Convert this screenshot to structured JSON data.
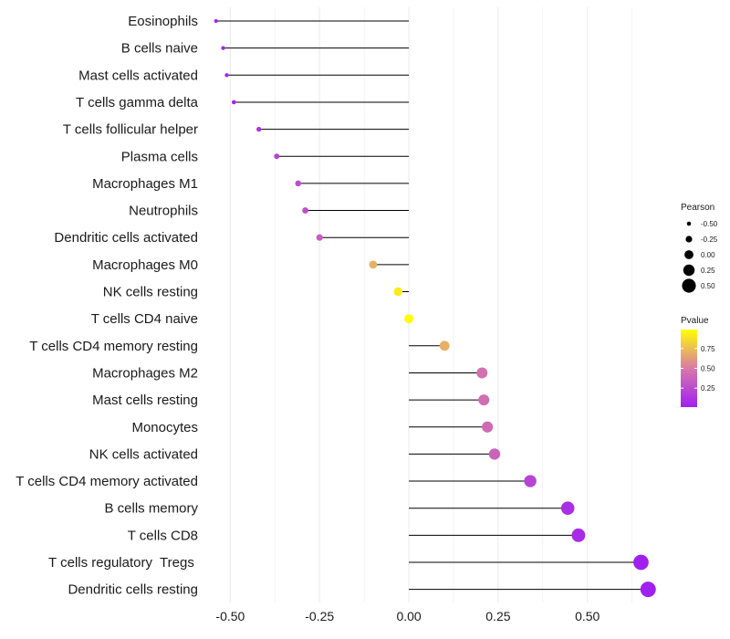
{
  "chart_data": {
    "type": "lollipop",
    "title": "",
    "xlabel": "",
    "ylabel": "",
    "xlim": [
      -0.57,
      0.7
    ],
    "x_ticks": [
      -0.5,
      -0.25,
      0.0,
      0.25,
      0.5
    ],
    "x_tick_labels": [
      "-0.50",
      "-0.25",
      "0.00",
      "0.25",
      "0.50"
    ],
    "grid": true,
    "series": [
      {
        "name": "Eosinophils",
        "pearson": -0.54,
        "pvalue": 0.02
      },
      {
        "name": "B cells naive",
        "pearson": -0.52,
        "pvalue": 0.03
      },
      {
        "name": "Mast cells activated",
        "pearson": -0.51,
        "pvalue": 0.04
      },
      {
        "name": "T cells gamma delta",
        "pearson": -0.49,
        "pvalue": 0.05
      },
      {
        "name": "T cells follicular helper",
        "pearson": -0.42,
        "pvalue": 0.12
      },
      {
        "name": "Plasma cells",
        "pearson": -0.37,
        "pvalue": 0.2
      },
      {
        "name": "Macrophages M1",
        "pearson": -0.31,
        "pvalue": 0.26
      },
      {
        "name": "Neutrophils",
        "pearson": -0.29,
        "pvalue": 0.27
      },
      {
        "name": "Dendritic cells activated",
        "pearson": -0.25,
        "pvalue": 0.35
      },
      {
        "name": "Macrophages M0",
        "pearson": -0.1,
        "pvalue": 0.7
      },
      {
        "name": "NK cells resting",
        "pearson": -0.03,
        "pvalue": 0.92
      },
      {
        "name": "T cells CD4 naive",
        "pearson": 0.0,
        "pvalue": 0.99
      },
      {
        "name": "T cells CD4 memory resting",
        "pearson": 0.1,
        "pvalue": 0.7
      },
      {
        "name": "Macrophages M2",
        "pearson": 0.205,
        "pvalue": 0.45
      },
      {
        "name": "Mast cells resting",
        "pearson": 0.21,
        "pvalue": 0.44
      },
      {
        "name": "Monocytes",
        "pearson": 0.22,
        "pvalue": 0.42
      },
      {
        "name": "NK cells activated",
        "pearson": 0.24,
        "pvalue": 0.38
      },
      {
        "name": "T cells CD4 memory activated",
        "pearson": 0.34,
        "pvalue": 0.21
      },
      {
        "name": "B cells memory",
        "pearson": 0.445,
        "pvalue": 0.09
      },
      {
        "name": "T cells CD8",
        "pearson": 0.475,
        "pvalue": 0.07
      },
      {
        "name": "T cells regulatory  Tregs ",
        "pearson": 0.65,
        "pvalue": 0.01
      },
      {
        "name": "Dendritic cells resting",
        "pearson": 0.67,
        "pvalue": 0.01
      }
    ],
    "legend": {
      "placement": "right",
      "size_title": "Pearson",
      "size_values": [
        -0.5,
        -0.25,
        0.0,
        0.25,
        0.5
      ],
      "size_labels": [
        "-0.50",
        "-0.25",
        "0.00",
        "0.25",
        "0.50"
      ],
      "color_title": "Pvalue",
      "color_ticks": [
        0.25,
        0.5,
        0.75
      ],
      "color_tick_labels": [
        "0.25",
        "0.50",
        "0.75"
      ],
      "pvalue_range": [
        0.01,
        0.99
      ]
    },
    "colors": {
      "low": "#a020f0",
      "mid": "#d77aa8",
      "high": "#ffff00",
      "stem": "#000000",
      "grid": "#ececec"
    }
  }
}
